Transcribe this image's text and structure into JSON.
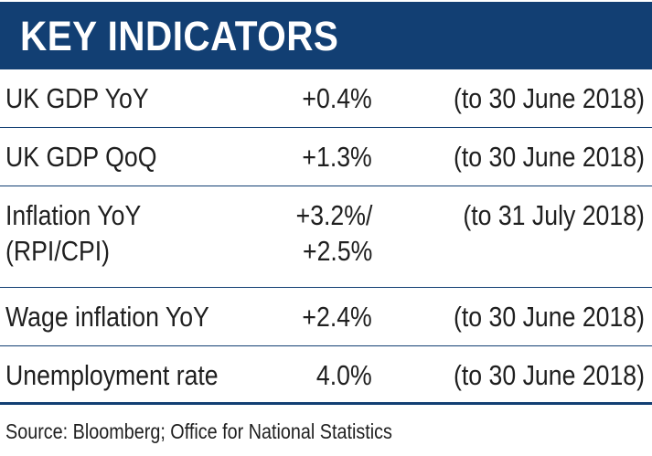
{
  "title": "KEY INDICATORS",
  "rows": [
    {
      "label": "UK GDP YoY",
      "value": "+0.4%",
      "period": "(to 30 June 2018)"
    },
    {
      "label": "UK GDP QoQ",
      "value": "+1.3%",
      "period": "(to 30 June 2018)"
    },
    {
      "label_lines": [
        "Inflation YoY",
        "(RPI/CPI)"
      ],
      "value_lines": [
        "+3.2%/",
        "+2.5%"
      ],
      "period": "(to 31 July 2018)"
    },
    {
      "label": "Wage inflation YoY",
      "value": "+2.4%",
      "period": "(to 30 June 2018)"
    },
    {
      "label": "Unemployment rate",
      "value": "4.0%",
      "period": "(to 30 June 2018)"
    }
  ],
  "source": "Source: Bloomberg; Office for National Statistics",
  "colors": {
    "header_background": "#123f73",
    "header_text": "#ffffff",
    "rule": "#123f73",
    "text": "#1f1f1f"
  }
}
